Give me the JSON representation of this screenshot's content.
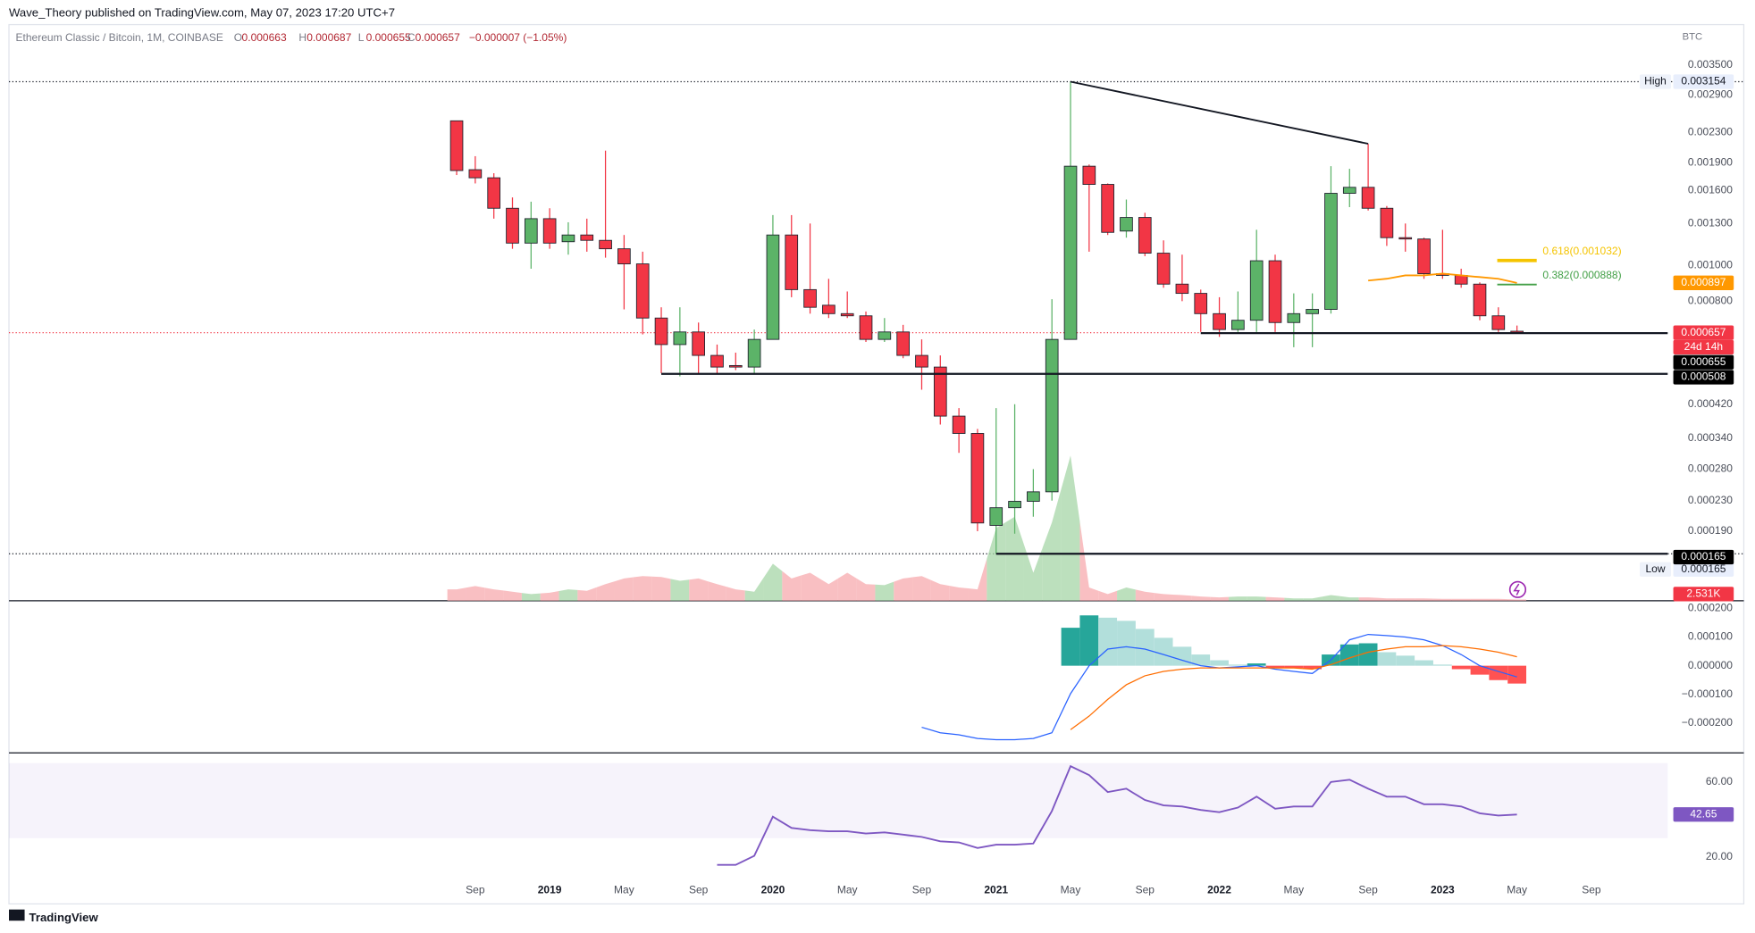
{
  "header": {
    "publisher": "Wave_Theory published on TradingView.com, May 07, 2023 17:20 UTC+7",
    "footer": "TradingView"
  },
  "chart_data": {
    "type": "candlestick",
    "legend": {
      "symbol": "Ethereum Classic / Bitcoin, 1M, COINBASE",
      "o_label": "O",
      "h_label": "H",
      "l_label": "L",
      "c_label": "C",
      "change": "−0.000007 (−1.05%)"
    },
    "currency": "BTC",
    "categories": [
      null,
      "Sep",
      null,
      null,
      null,
      "2019",
      null,
      null,
      null,
      "May",
      null,
      null,
      null,
      "Sep",
      null,
      null,
      null,
      "2020",
      null,
      null,
      null,
      "May",
      null,
      null,
      null,
      "Sep",
      null,
      null,
      null,
      "2021",
      null,
      null,
      null,
      "May",
      null,
      null,
      null,
      "Sep",
      null,
      null,
      null,
      "2022",
      null,
      null,
      null,
      "May",
      null,
      null,
      null,
      "Sep",
      null,
      null,
      null,
      "2023",
      null,
      null,
      null,
      "May",
      null,
      null,
      null,
      "Sep"
    ],
    "open": [
      0.00247,
      0.00182,
      0.00173,
      0.00143,
      0.00115,
      0.00134,
      0.00116,
      0.00121,
      0.00117,
      0.00111,
      0.00101,
      0.00072,
      0.00061,
      0.00066,
      0.00057,
      0.000535,
      0.00053,
      0.00063,
      0.00121,
      0.00086,
      0.00078,
      0.00074,
      0.00073,
      0.00063,
      0.00066,
      0.00057,
      0.00053,
      0.00039,
      0.00035,
      0.000197,
      0.00022,
      0.000229,
      0.000243,
      0.00063,
      0.00186,
      0.00166,
      0.00124,
      0.00135,
      0.00108,
      0.00089,
      0.00084,
      0.00074,
      0.00067,
      0.00071,
      0.00103,
      0.0007,
      0.00074,
      0.00076,
      0.00157,
      0.00163,
      0.00143,
      0.00119,
      0.00118,
      0.00095,
      0.00094,
      0.00089,
      0.00073,
      0.000663,
      null,
      null,
      null,
      null
    ],
    "high": [
      0.00247,
      0.00198,
      0.00178,
      0.00153,
      0.00149,
      0.00143,
      0.00131,
      0.00134,
      0.00205,
      0.00121,
      0.00109,
      0.00077,
      0.00077,
      0.0007,
      0.00061,
      0.00058,
      0.00067,
      0.00137,
      0.00137,
      0.0013,
      0.00092,
      0.00085,
      0.00075,
      0.00072,
      0.00069,
      0.00063,
      0.00057,
      0.00041,
      0.00036,
      0.00041,
      0.00042,
      0.00028,
      0.00081,
      0.003154,
      0.00188,
      0.00167,
      0.00151,
      0.00139,
      0.00117,
      0.00107,
      0.00086,
      0.00082,
      0.00085,
      0.00125,
      0.00107,
      0.00084,
      0.00084,
      0.00186,
      0.00183,
      0.00214,
      0.00145,
      0.0013,
      0.00119,
      0.00125,
      0.00098,
      0.0009,
      0.00077,
      0.000687,
      null,
      null,
      null,
      null
    ],
    "low": [
      0.00176,
      0.00167,
      0.00134,
      0.00111,
      0.00098,
      0.00111,
      0.00107,
      0.00109,
      0.00105,
      0.00076,
      0.00065,
      0.00051,
      0.0005,
      0.00051,
      0.00051,
      0.00052,
      0.00051,
      0.00063,
      0.00082,
      0.00074,
      0.00072,
      0.00072,
      0.00062,
      0.00062,
      0.00056,
      0.00046,
      0.00037,
      0.00031,
      0.00019,
      0.000165,
      0.000187,
      0.000208,
      0.00023,
      0.00063,
      0.00109,
      0.00121,
      0.00119,
      0.00106,
      0.00087,
      0.0008,
      0.00066,
      0.00064,
      0.00066,
      0.00066,
      0.00066,
      0.0006,
      0.0006,
      0.00074,
      0.00144,
      0.00141,
      0.00113,
      0.00109,
      0.00092,
      0.00092,
      0.00087,
      0.00071,
      0.00066,
      0.000655,
      null,
      null,
      null,
      null
    ],
    "close": [
      0.00181,
      0.00173,
      0.00143,
      0.00115,
      0.00134,
      0.00115,
      0.00121,
      0.00117,
      0.00111,
      0.00101,
      0.00072,
      0.00061,
      0.00066,
      0.00057,
      0.00053,
      0.00053,
      0.00063,
      0.00121,
      0.00086,
      0.00077,
      0.00074,
      0.00073,
      0.00063,
      0.00066,
      0.00057,
      0.00053,
      0.00039,
      0.00035,
      0.0002,
      0.00022,
      0.000229,
      0.000243,
      0.00063,
      0.00186,
      0.00166,
      0.00123,
      0.00135,
      0.00108,
      0.00089,
      0.00084,
      0.00074,
      0.00067,
      0.00071,
      0.00103,
      0.0007,
      0.00074,
      0.00076,
      0.00157,
      0.00163,
      0.00143,
      0.00119,
      0.00118,
      0.00095,
      0.00094,
      0.00089,
      0.00073,
      0.00067,
      0.000657,
      null,
      null,
      null,
      null
    ],
    "up_color": "#5cb368",
    "down_color": "#f23645",
    "log_scale": true,
    "grid": false,
    "ylim": [
      0.000123,
      0.00457
    ],
    "yticks": [
      {
        "value": 0.0035,
        "label": "0.003500"
      },
      {
        "value": 0.0029,
        "label": "0.002900"
      },
      {
        "value": 0.0023,
        "label": "0.002300"
      },
      {
        "value": 0.0019,
        "label": "0.001900"
      },
      {
        "value": 0.0016,
        "label": "0.001600"
      },
      {
        "value": 0.0013,
        "label": "0.001300"
      },
      {
        "value": 0.001,
        "label": "0.001000"
      },
      {
        "value": 0.0008,
        "label": "0.000800"
      },
      {
        "value": 0.00042,
        "label": "0.000420"
      },
      {
        "value": 0.00034,
        "label": "0.000340"
      },
      {
        "value": 0.00028,
        "label": "0.000280"
      },
      {
        "value": 0.00023,
        "label": "0.000230"
      },
      {
        "value": 0.00019,
        "label": "0.000190"
      }
    ],
    "high_label": "High",
    "low_label": "Low",
    "countdown": "24d 14h",
    "levels": [
      0.000655,
      0.000508,
      0.000165
    ],
    "fib": [
      {
        "label": "0.618(0.001032)",
        "value": 0.001032,
        "color": "#f5c400"
      },
      {
        "label": "0.382(0.000888)",
        "value": 0.000888,
        "color": "#43a047"
      }
    ],
    "ema": {
      "color": "#ff9800",
      "values": [
        null,
        null,
        null,
        null,
        null,
        null,
        null,
        null,
        null,
        null,
        null,
        null,
        null,
        null,
        null,
        null,
        null,
        null,
        null,
        null,
        null,
        null,
        null,
        null,
        null,
        null,
        null,
        null,
        null,
        null,
        null,
        null,
        null,
        null,
        null,
        null,
        null,
        null,
        null,
        null,
        null,
        null,
        null,
        null,
        null,
        null,
        null,
        null,
        null,
        0.00091,
        0.00092,
        0.00094,
        0.00094,
        0.00095,
        0.00094,
        0.00093,
        0.00092,
        0.000897,
        null,
        null,
        null,
        null
      ]
    },
    "volume": {
      "ylim": [
        0,
        330
      ],
      "last_value_label": "2.531K",
      "values": [
        24,
        31,
        24,
        19,
        14,
        17,
        24,
        21,
        35,
        47,
        52,
        50,
        42,
        47,
        35,
        24,
        19,
        78,
        47,
        59,
        35,
        59,
        35,
        33,
        47,
        52,
        35,
        28,
        24,
        153,
        177,
        59,
        165,
        306,
        28,
        14,
        28,
        19,
        14,
        12,
        9,
        7,
        9,
        9,
        7,
        5,
        5,
        12,
        7,
        7,
        5,
        5,
        5,
        4,
        4,
        4,
        4,
        2.531,
        null,
        null,
        null,
        null
      ]
    },
    "macd": {
      "ylim": [
        -0.000303,
        0.000222
      ],
      "yticks": [
        {
          "value": 0.0002,
          "label": "0.000200"
        },
        {
          "value": 0.0001,
          "label": "0.000100"
        },
        {
          "value": 0,
          "label": "0.000000"
        },
        {
          "value": -0.0001,
          "label": "−0.000100"
        },
        {
          "value": -0.0002,
          "label": "−0.000200"
        }
      ],
      "macd": {
        "color": "#2962ff",
        "values": [
          null,
          null,
          null,
          null,
          null,
          null,
          null,
          null,
          null,
          null,
          null,
          null,
          null,
          null,
          null,
          null,
          null,
          null,
          null,
          null,
          null,
          null,
          null,
          null,
          null,
          -0.000214,
          -0.000233,
          -0.00024,
          -0.000253,
          -0.000257,
          -0.000257,
          -0.000253,
          -0.000233,
          -9.7e-05,
          0,
          5.8e-05,
          6.6e-05,
          5.8e-05,
          3.9e-05,
          1.9e-05,
          0,
          -8e-06,
          -4e-06,
          0,
          -1.2e-05,
          -2e-05,
          -2.7e-05,
          2e-05,
          9e-05,
          0.000109,
          0.000105,
          0.0001,
          9e-05,
          7e-05,
          3.9e-05,
          0,
          -2e-05,
          -3.9e-05,
          null,
          null,
          null,
          null
        ]
      },
      "signal": {
        "color": "#ff6d00",
        "values": [
          null,
          null,
          null,
          null,
          null,
          null,
          null,
          null,
          null,
          null,
          null,
          null,
          null,
          null,
          null,
          null,
          null,
          null,
          null,
          null,
          null,
          null,
          null,
          null,
          null,
          null,
          null,
          null,
          null,
          null,
          null,
          null,
          null,
          -0.000222,
          -0.000175,
          -0.000117,
          -6.6e-05,
          -3.5e-05,
          -2e-05,
          -1.2e-05,
          -8e-06,
          -8e-06,
          -8e-06,
          -8e-06,
          -8e-06,
          -8e-06,
          -1.2e-05,
          4e-06,
          2.7e-05,
          4.7e-05,
          5.8e-05,
          6.6e-05,
          6.6e-05,
          7e-05,
          6.6e-05,
          5.8e-05,
          4.7e-05,
          3.1e-05,
          null,
          null,
          null,
          null
        ]
      },
      "histogram": {
        "colors": [
          "#26a69a",
          "#b2dfdb",
          "#ff5252",
          "#ffcdd2"
        ],
        "values": [
          null,
          null,
          null,
          null,
          null,
          null,
          null,
          null,
          null,
          null,
          null,
          null,
          null,
          null,
          null,
          null,
          null,
          null,
          null,
          null,
          null,
          null,
          null,
          null,
          null,
          null,
          null,
          null,
          null,
          null,
          null,
          null,
          null,
          0.000132,
          0.000175,
          0.000167,
          0.000156,
          0.000128,
          9.7e-05,
          6.6e-05,
          3.9e-05,
          1.9e-05,
          4e-06,
          8e-06,
          -8e-06,
          -8e-06,
          -1.2e-05,
          3.9e-05,
          7.4e-05,
          7.8e-05,
          4.7e-05,
          3.5e-05,
          1.9e-05,
          4e-06,
          -1.2e-05,
          -3.1e-05,
          -5e-05,
          -6.2e-05,
          null,
          null,
          null,
          null
        ]
      }
    },
    "rsi": {
      "color": "#7e57c2",
      "ylim": [
        6.9,
        74.3
      ],
      "band": [
        30,
        70
      ],
      "yticks": [
        {
          "value": 60,
          "label": "60.00"
        },
        {
          "value": 20,
          "label": "20.00"
        }
      ],
      "values": [
        null,
        null,
        null,
        null,
        null,
        null,
        null,
        null,
        null,
        null,
        null,
        null,
        null,
        null,
        15.8,
        15.8,
        20.6,
        41.5,
        35.5,
        34.3,
        33.7,
        33.7,
        32.5,
        33.1,
        31.9,
        30.7,
        28.4,
        27.8,
        24.8,
        26.6,
        26.6,
        27.2,
        44.5,
        68.4,
        63.6,
        54.6,
        56.4,
        50.4,
        47.5,
        46.9,
        45.1,
        43.9,
        46.3,
        52.2,
        45.7,
        46.9,
        46.9,
        60,
        61.2,
        56.4,
        52.2,
        52.2,
        48.1,
        48.1,
        46.9,
        43.3,
        42.1,
        42.65,
        null,
        null,
        null,
        null
      ]
    }
  }
}
